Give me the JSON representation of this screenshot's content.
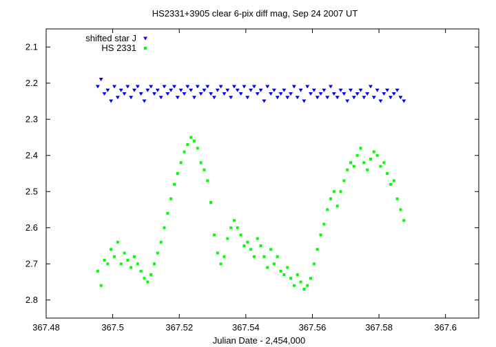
{
  "chart_data": {
    "type": "scatter",
    "title": "HS2331+3905 clear 6-pix diff mag, Sep 24 2007 UT",
    "xlabel": "Julian Date - 2,454,000",
    "ylabel": "",
    "xlim": [
      367.48,
      367.61
    ],
    "ylim": [
      2.05,
      2.85
    ],
    "y_inverted": true,
    "x_ticks": [
      "367.48",
      "367.5",
      "367.52",
      "367.54",
      "367.56",
      "367.58",
      "367.6"
    ],
    "y_ticks": [
      "2.1",
      "2.2",
      "2.3",
      "2.4",
      "2.5",
      "2.6",
      "2.7",
      "2.8"
    ],
    "grid": false,
    "legend_position": "top-left",
    "series": [
      {
        "name": "shifted star J",
        "marker": "triangle-down",
        "color": "#0000ff",
        "x": [
          367.4955,
          367.4965,
          367.4975,
          367.4985,
          367.4995,
          367.5005,
          367.5015,
          367.5025,
          367.5035,
          367.5045,
          367.5055,
          367.5065,
          367.5075,
          367.5085,
          367.5095,
          367.5105,
          367.5115,
          367.5125,
          367.5135,
          367.5145,
          367.5155,
          367.5165,
          367.5175,
          367.5185,
          367.5195,
          367.5205,
          367.5215,
          367.5225,
          367.5235,
          367.5245,
          367.5255,
          367.5265,
          367.5275,
          367.5285,
          367.5295,
          367.5305,
          367.5315,
          367.5325,
          367.5335,
          367.5345,
          367.5355,
          367.5365,
          367.5375,
          367.5385,
          367.5395,
          367.5405,
          367.5415,
          367.5425,
          367.5435,
          367.5445,
          367.5455,
          367.5465,
          367.5475,
          367.5485,
          367.5495,
          367.5505,
          367.5515,
          367.5525,
          367.5535,
          367.5545,
          367.5555,
          367.5565,
          367.5575,
          367.5585,
          367.5595,
          367.5605,
          367.5615,
          367.5625,
          367.5635,
          367.5645,
          367.5655,
          367.5665,
          367.5675,
          367.5685,
          367.5695,
          367.5705,
          367.5715,
          367.5725,
          367.5735,
          367.5745,
          367.5755,
          367.5765,
          367.5775,
          367.5785,
          367.5795,
          367.5805,
          367.5815,
          367.5825,
          367.5835,
          367.5845,
          367.5855,
          367.5865,
          367.5875
        ],
        "y": [
          2.21,
          2.19,
          2.23,
          2.22,
          2.25,
          2.21,
          2.24,
          2.22,
          2.23,
          2.21,
          2.24,
          2.22,
          2.21,
          2.23,
          2.25,
          2.22,
          2.21,
          2.23,
          2.22,
          2.24,
          2.21,
          2.23,
          2.22,
          2.21,
          2.24,
          2.22,
          2.23,
          2.21,
          2.22,
          2.24,
          2.21,
          2.23,
          2.22,
          2.21,
          2.23,
          2.24,
          2.22,
          2.21,
          2.23,
          2.22,
          2.24,
          2.21,
          2.22,
          2.23,
          2.21,
          2.24,
          2.22,
          2.21,
          2.23,
          2.22,
          2.25,
          2.21,
          2.23,
          2.22,
          2.24,
          2.23,
          2.22,
          2.24,
          2.23,
          2.21,
          2.24,
          2.22,
          2.25,
          2.21,
          2.23,
          2.22,
          2.24,
          2.23,
          2.22,
          2.24,
          2.21,
          2.23,
          2.24,
          2.22,
          2.23,
          2.25,
          2.22,
          2.24,
          2.23,
          2.22,
          2.24,
          2.23,
          2.21,
          2.24,
          2.22,
          2.25,
          2.23,
          2.22,
          2.24,
          2.23,
          2.22,
          2.24,
          2.25
        ]
      },
      {
        "name": "HS 2331",
        "marker": "square",
        "color": "#00ff00",
        "x": [
          367.4955,
          367.4965,
          367.4975,
          367.4985,
          367.4995,
          367.5005,
          367.5015,
          367.5025,
          367.5035,
          367.5045,
          367.5055,
          367.5065,
          367.5075,
          367.5085,
          367.5095,
          367.5105,
          367.5115,
          367.5125,
          367.5135,
          367.5145,
          367.5155,
          367.5165,
          367.5175,
          367.5185,
          367.5195,
          367.5205,
          367.5215,
          367.5225,
          367.5235,
          367.5245,
          367.5255,
          367.5265,
          367.5275,
          367.5285,
          367.5295,
          367.5305,
          367.5315,
          367.5325,
          367.5335,
          367.5345,
          367.5355,
          367.5365,
          367.5375,
          367.5385,
          367.5395,
          367.5405,
          367.5415,
          367.5425,
          367.5435,
          367.5445,
          367.5455,
          367.5465,
          367.5475,
          367.5485,
          367.5495,
          367.5505,
          367.5515,
          367.5525,
          367.5535,
          367.5545,
          367.5555,
          367.5565,
          367.5575,
          367.5585,
          367.5595,
          367.5605,
          367.5615,
          367.5625,
          367.5635,
          367.5645,
          367.5655,
          367.5665,
          367.5675,
          367.5685,
          367.5695,
          367.5705,
          367.5715,
          367.5725,
          367.5735,
          367.5745,
          367.5755,
          367.5765,
          367.5775,
          367.5785,
          367.5795,
          367.5805,
          367.5815,
          367.5825,
          367.5835,
          367.5845,
          367.5855,
          367.5865,
          367.5875
        ],
        "y": [
          2.72,
          2.76,
          2.69,
          2.7,
          2.66,
          2.68,
          2.64,
          2.7,
          2.67,
          2.69,
          2.71,
          2.68,
          2.7,
          2.72,
          2.74,
          2.75,
          2.73,
          2.7,
          2.67,
          2.64,
          2.6,
          2.56,
          2.52,
          2.48,
          2.45,
          2.42,
          2.39,
          2.37,
          2.35,
          2.36,
          2.38,
          2.42,
          2.44,
          2.47,
          2.53,
          2.62,
          2.67,
          2.7,
          2.68,
          2.63,
          2.6,
          2.58,
          2.6,
          2.62,
          2.65,
          2.64,
          2.66,
          2.68,
          2.63,
          2.65,
          2.68,
          2.71,
          2.66,
          2.7,
          2.68,
          2.72,
          2.73,
          2.71,
          2.74,
          2.76,
          2.73,
          2.75,
          2.77,
          2.76,
          2.74,
          2.7,
          2.66,
          2.62,
          2.59,
          2.55,
          2.52,
          2.5,
          2.54,
          2.5,
          2.47,
          2.44,
          2.42,
          2.43,
          2.4,
          2.38,
          2.42,
          2.44,
          2.41,
          2.39,
          2.4,
          2.43,
          2.42,
          2.45,
          2.48,
          2.47,
          2.52,
          2.55,
          2.58
        ]
      }
    ]
  }
}
